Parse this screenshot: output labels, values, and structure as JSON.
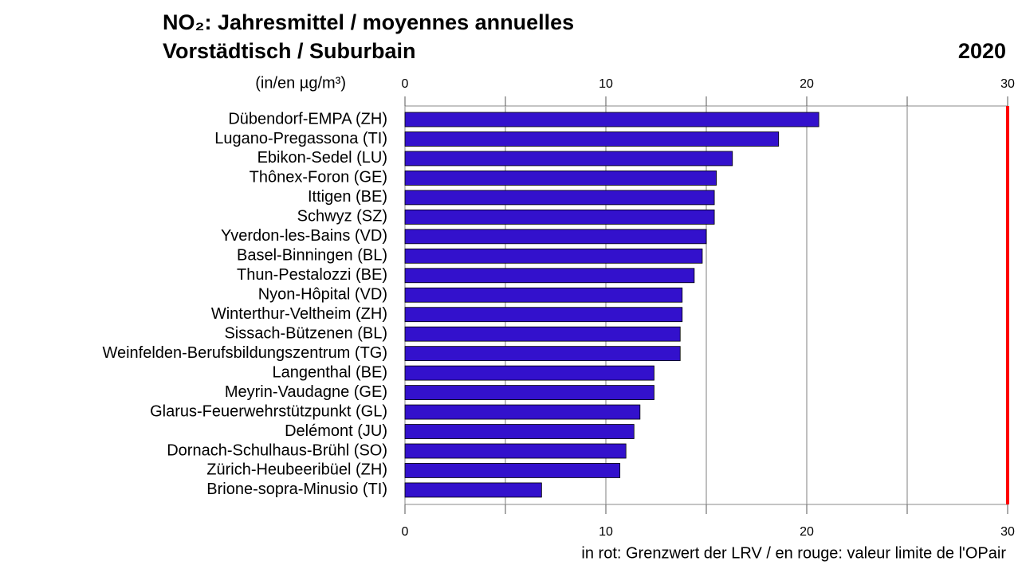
{
  "chart_data": {
    "type": "bar",
    "orientation": "horizontal",
    "title": "NO₂: Jahresmittel  / moyennes annuelles",
    "subtitle": "Vorstädtisch / Suburbain",
    "year": "2020",
    "unit_label": "(in/en µg/m³)",
    "note": "in rot: Grenzwert der LRV / en rouge: valeur limite de l'OPair",
    "categories": [
      "Dübendorf-EMPA (ZH)",
      "Lugano-Pregassona (TI)",
      "Ebikon-Sedel (LU)",
      "Thônex-Foron (GE)",
      "Ittigen (BE)",
      "Schwyz (SZ)",
      "Yverdon-les-Bains (VD)",
      "Basel-Binningen (BL)",
      "Thun-Pestalozzi (BE)",
      "Nyon-Hôpital (VD)",
      "Winterthur-Veltheim (ZH)",
      "Sissach-Bützenen (BL)",
      "Weinfelden-Berufsbildungszentrum (TG)",
      "Langenthal (BE)",
      "Meyrin-Vaudagne (GE)",
      "Glarus-Feuerwehrstützpunkt (GL)",
      "Delémont (JU)",
      "Dornach-Schulhaus-Brühl (SO)",
      "Zürich-Heubeeribüel (ZH)",
      "Brione-sopra-Minusio (TI)"
    ],
    "values": [
      20.6,
      18.6,
      16.3,
      15.5,
      15.4,
      15.4,
      15.0,
      14.8,
      14.4,
      13.8,
      13.8,
      13.7,
      13.7,
      12.4,
      12.4,
      11.7,
      11.4,
      11.0,
      10.7,
      6.8
    ],
    "color": "#3311cc",
    "xlim": [
      0,
      30
    ],
    "xticks": [
      0,
      10,
      20,
      30
    ],
    "gridlines": [
      5,
      10,
      15,
      20,
      25
    ],
    "grid": true,
    "limit_value": 30,
    "limit_color": "#ff0000"
  }
}
